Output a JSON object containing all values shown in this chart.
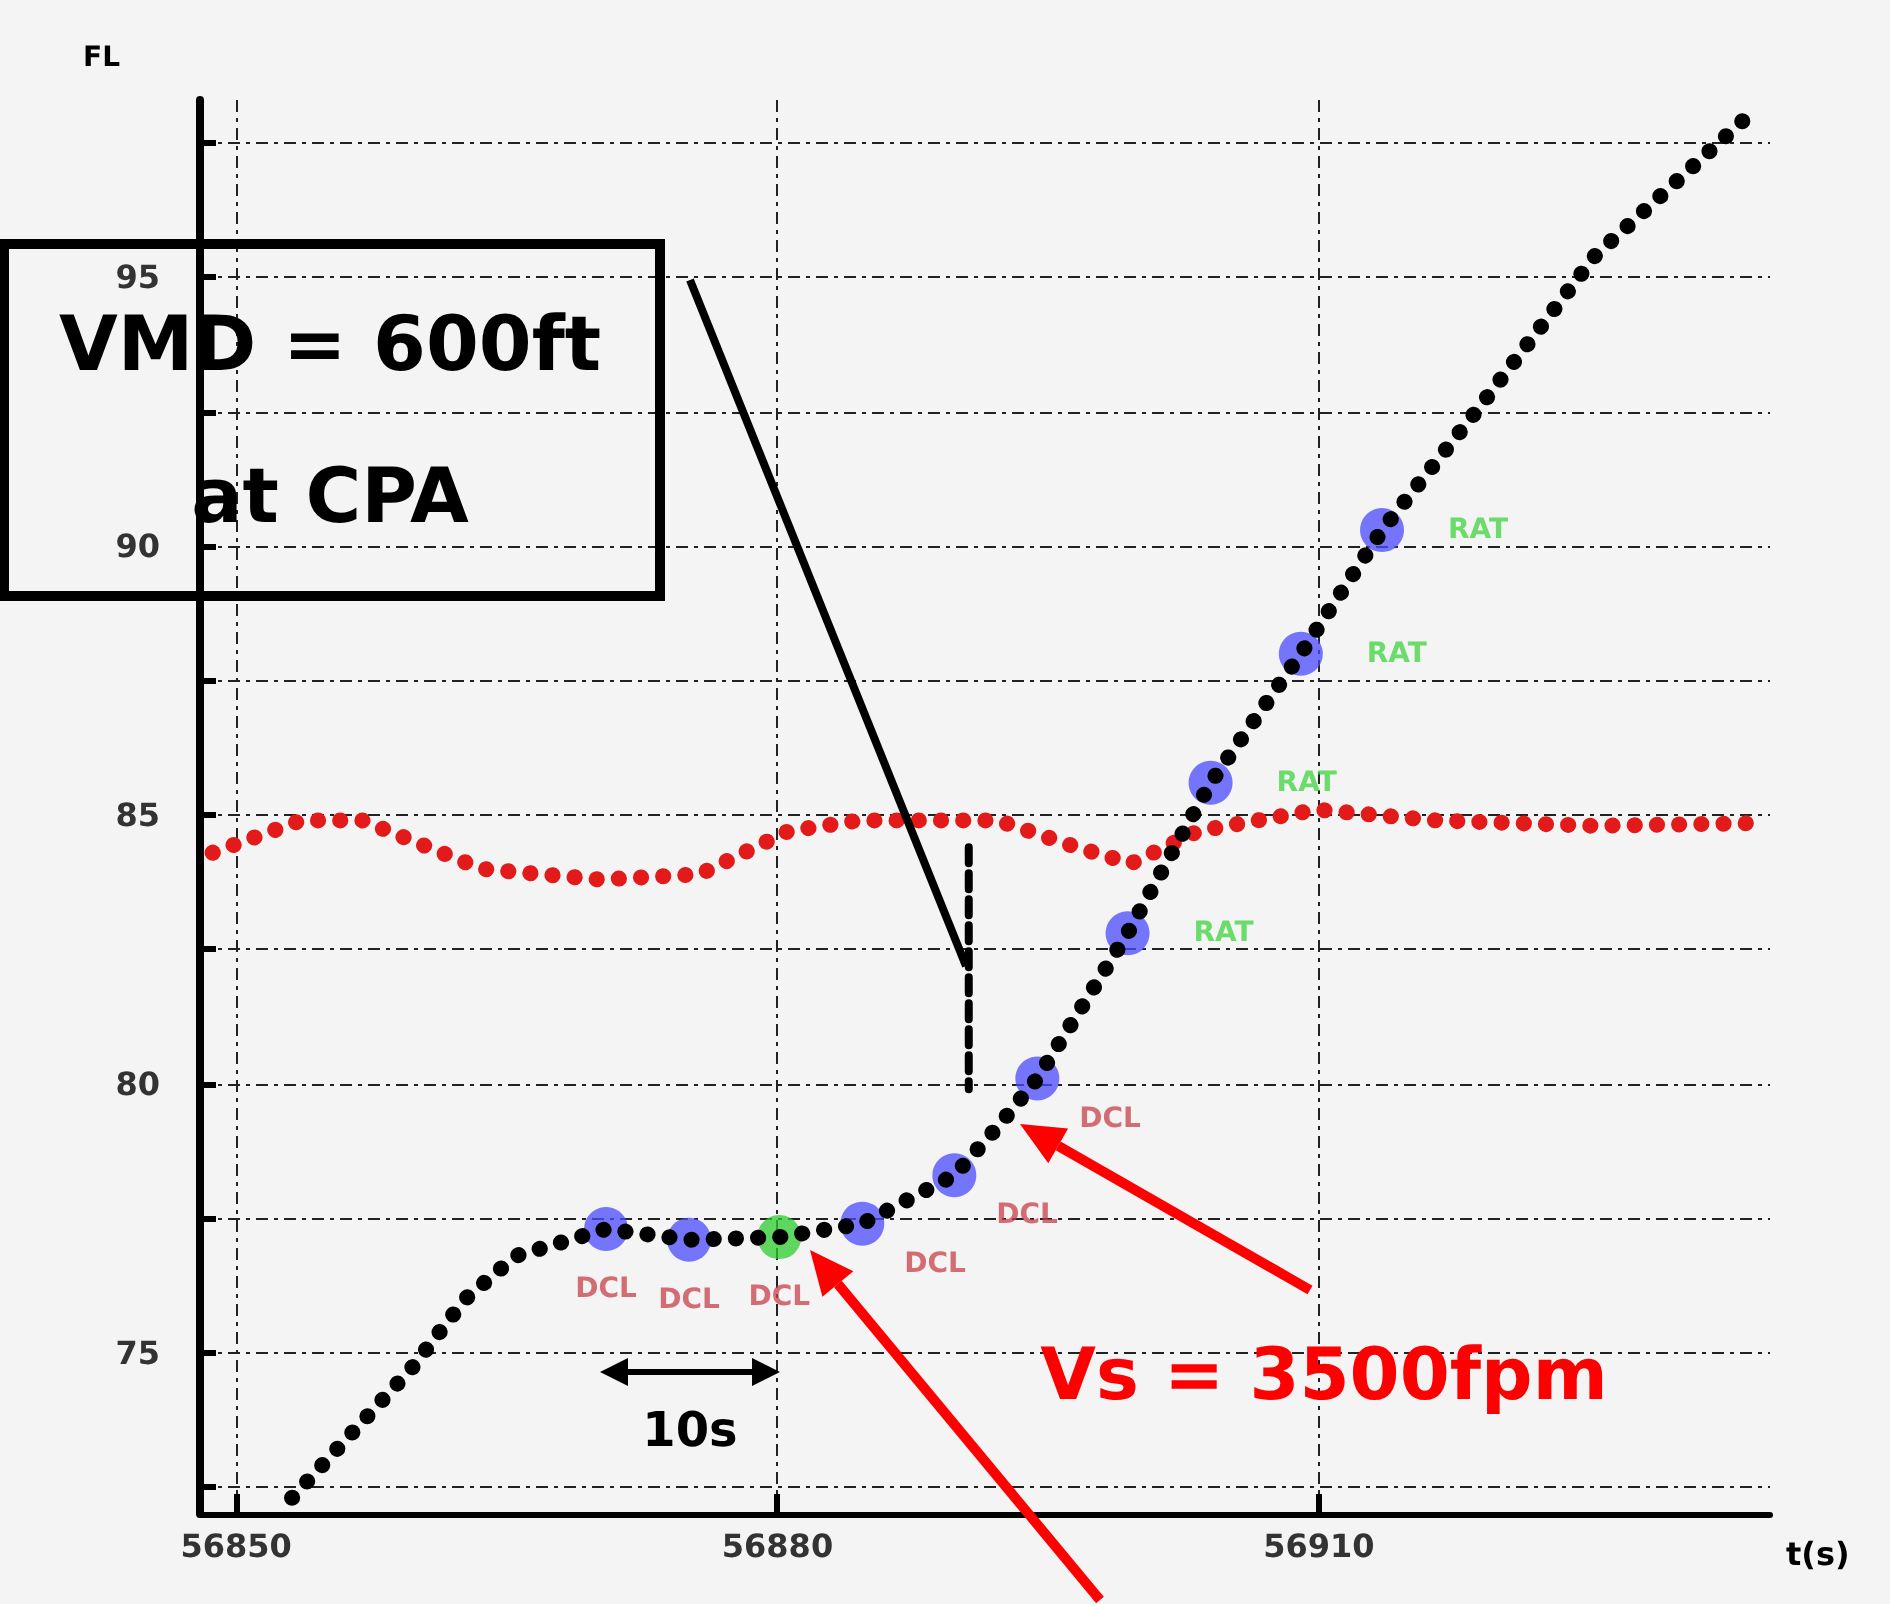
{
  "chart_data": {
    "type": "line",
    "xlabel": "t(s)",
    "ylabel": "FL",
    "xlim": [
      56848,
      56935
    ],
    "ylim": [
      72,
      98.3
    ],
    "xticks": [
      56850,
      56880,
      56910
    ],
    "yticks": [
      {
        "value": 72.5,
        "label": null
      },
      75,
      {
        "value": 77.5,
        "label": null
      },
      80,
      {
        "value": 82.5,
        "label": null
      },
      85,
      {
        "value": 87.5,
        "label": null
      },
      90,
      {
        "value": 92.5,
        "label": null
      },
      95,
      {
        "value": 97.5,
        "label": null
      }
    ],
    "grid": true,
    "annotations": [
      "VMD = 600ft\nat CPA",
      "Vs = 3500fpm",
      "10s"
    ],
    "series": [
      {
        "color": "#e31a1a",
        "marker": "none",
        "line_style": "dotted",
        "x": [
          56848.7,
          56853.6,
          56857,
          56863.6,
          56870.2,
          56875.7,
          56880.6,
          56884.5,
          56892.2,
          56896.6,
          56899.6,
          56903.3,
          56909.9,
          56916.5,
          56925.3,
          56934.1
        ],
        "values": [
          84.3,
          84.9,
          84.9,
          84.0,
          83.8,
          83.9,
          84.7,
          84.9,
          84.9,
          84.4,
          84.1,
          84.7,
          85.1,
          84.9,
          84.8,
          84.85
        ]
      },
      {
        "color": "#000000",
        "marker": "none",
        "line_style": "dotted",
        "x": [
          56853.1,
          56856.4,
          56859.7,
          56862.7,
          56865.5,
          56868.5,
          56870.5,
          56875.1,
          56880.1,
          56884.7,
          56889.8,
          56892.2,
          56894.4,
          56899.4,
          56904.0,
          56909.0,
          56913.5,
          56918.7,
          56925.3,
          56934.1
        ],
        "values": [
          72.3,
          73.5,
          74.7,
          76.0,
          76.8,
          77.1,
          77.3,
          77.1,
          77.15,
          77.4,
          78.3,
          79.2,
          80.1,
          82.8,
          85.6,
          88.0,
          90.3,
          92.5,
          95.4,
          98.1
        ]
      },
      {
        "color": "#000000",
        "marker": "none",
        "line_style": "dashed",
        "x": [
          56890.6,
          56890.6
        ],
        "values": [
          84.4,
          79.9
        ]
      },
      {
        "type": "scatter",
        "color": "#4b4bff",
        "colors": [
          "#4b4bff",
          "#4b4bff",
          "#2ecc2e",
          "#4b4bff",
          "#4b4bff",
          "#4b4bff"
        ],
        "marker": "circle",
        "x": [
          56870.5,
          56875.1,
          56880.1,
          56884.7,
          56889.8,
          56894.4
        ],
        "values": [
          77.3,
          77.1,
          77.15,
          77.4,
          78.3,
          80.1
        ],
        "value_labels": [
          "DCL",
          "DCL",
          "DCL",
          "DCL",
          "DCL",
          "DCL"
        ]
      },
      {
        "type": "scatter",
        "color": "#4b4bff",
        "marker": "circle",
        "x": [
          56899.4,
          56904.0,
          56909.0,
          56913.5
        ],
        "values": [
          82.8,
          85.6,
          88.0,
          90.3
        ],
        "value_labels": [
          "RAT",
          "RAT",
          "RAT",
          "RAT"
        ]
      }
    ]
  }
}
